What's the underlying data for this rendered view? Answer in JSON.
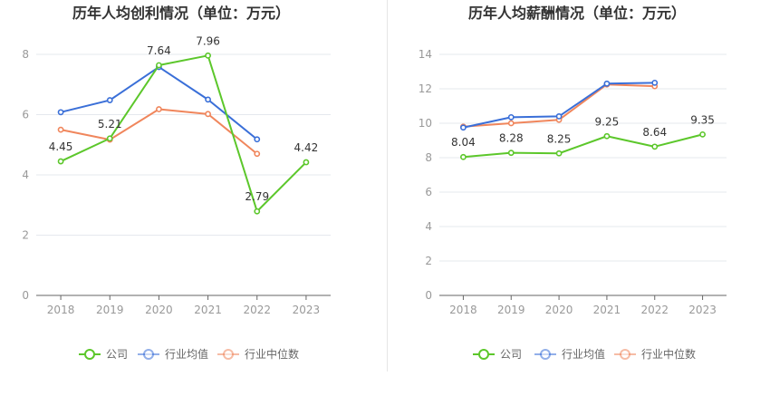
{
  "colors": {
    "company": "#5cc72b",
    "industry_avg": "#3a6fd8",
    "industry_median": "#f0865c",
    "grid": "#e5e8ee",
    "axis": "#666666",
    "tick_text": "#999999",
    "label_text": "#333333",
    "title_text": "#333333"
  },
  "chart_data": [
    {
      "type": "line",
      "title": "历年人均创利情况（单位：万元）",
      "categories": [
        "2018",
        "2019",
        "2020",
        "2021",
        "2022",
        "2023"
      ],
      "ylim": [
        0,
        8
      ],
      "yticks": [
        0,
        2,
        4,
        6,
        8
      ],
      "grid": true,
      "legend_position": "bottom-center",
      "series": [
        {
          "name": "公司",
          "key": "company",
          "values": [
            4.45,
            5.21,
            7.64,
            7.96,
            2.79,
            4.42
          ],
          "labels": [
            "4.45",
            "5.21",
            "7.64",
            "7.96",
            "2.79",
            "4.42"
          ]
        },
        {
          "name": "行业均值",
          "key": "industry_avg",
          "values": [
            6.08,
            6.48,
            7.58,
            6.5,
            5.18,
            null
          ]
        },
        {
          "name": "行业中位数",
          "key": "industry_median",
          "values": [
            5.5,
            5.17,
            6.18,
            6.02,
            4.7,
            null
          ]
        }
      ]
    },
    {
      "type": "line",
      "title": "历年人均薪酬情况（单位：万元）",
      "categories": [
        "2018",
        "2019",
        "2020",
        "2021",
        "2022",
        "2023"
      ],
      "ylim": [
        0,
        14
      ],
      "yticks": [
        0,
        2,
        4,
        6,
        8,
        10,
        12,
        14
      ],
      "grid": true,
      "legend_position": "bottom-center",
      "series": [
        {
          "name": "公司",
          "key": "company",
          "values": [
            8.04,
            8.28,
            8.25,
            9.25,
            8.64,
            9.35
          ],
          "labels": [
            "8.04",
            "8.28",
            "8.25",
            "9.25",
            "8.64",
            "9.35"
          ]
        },
        {
          "name": "行业均值",
          "key": "industry_avg",
          "values": [
            9.75,
            10.35,
            10.4,
            12.3,
            12.35,
            null
          ]
        },
        {
          "name": "行业中位数",
          "key": "industry_median",
          "values": [
            9.8,
            10.0,
            10.2,
            12.25,
            12.15,
            null
          ]
        }
      ]
    }
  ]
}
